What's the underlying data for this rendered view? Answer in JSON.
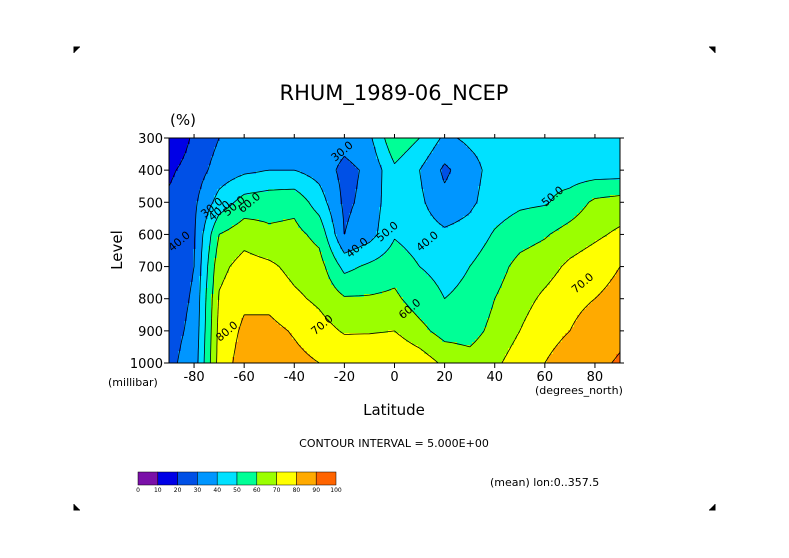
{
  "chart_data": {
    "type": "heatmap",
    "title": "RHUM_1989-06_NCEP",
    "units": "(%)",
    "xlabel": "Latitude",
    "ylabel": "Level",
    "x_units": "(degrees_north)",
    "y_units": "(millibar)",
    "xlim": [
      -90,
      90
    ],
    "ylim": [
      1000,
      300
    ],
    "x_ticks": [
      -80,
      -60,
      -40,
      -20,
      0,
      20,
      40,
      60,
      80
    ],
    "x_tick_labels": [
      "-80",
      "-60",
      "-40",
      "-20",
      "0",
      "20",
      "40",
      "60",
      "80"
    ],
    "y_ticks": [
      300,
      400,
      500,
      600,
      700,
      800,
      900,
      1000
    ],
    "y_tick_labels": [
      "300",
      "400",
      "500",
      "600",
      "700",
      "800",
      "900",
      "1000"
    ],
    "contour_interval_text": "CONTOUR INTERVAL = 5.000E+00",
    "footnote": "(mean) lon:0..357.5",
    "grid_x": [
      -90,
      -80,
      -70,
      -60,
      -50,
      -40,
      -30,
      -20,
      -10,
      0,
      10,
      20,
      30,
      40,
      50,
      60,
      70,
      80,
      90
    ],
    "grid_y": [
      300,
      400,
      500,
      600,
      700,
      800,
      900,
      1000
    ],
    "values": [
      [
        10,
        22,
        30,
        32,
        33,
        34,
        36,
        34,
        38,
        58,
        50,
        38,
        42,
        44,
        46,
        48,
        48,
        48,
        48
      ],
      [
        18,
        25,
        34,
        38,
        40,
        40,
        36,
        27,
        32,
        48,
        40,
        28,
        36,
        44,
        48,
        47,
        45,
        45,
        45
      ],
      [
        22,
        28,
        44,
        54,
        56,
        57,
        45,
        28,
        33,
        48,
        42,
        33,
        38,
        45,
        48,
        49,
        54,
        62,
        64
      ],
      [
        24,
        29,
        60,
        66,
        62,
        63,
        57,
        30,
        36,
        49,
        45,
        42,
        44,
        51,
        56,
        59,
        64,
        68,
        72
      ],
      [
        25,
        30,
        67,
        74,
        72,
        67,
        64,
        47,
        52,
        56,
        50,
        47,
        50,
        56,
        63,
        66,
        72,
        76,
        80
      ],
      [
        26,
        31,
        71,
        78,
        77,
        72,
        68,
        61,
        61,
        62,
        55,
        50,
        52,
        60,
        66,
        72,
        77,
        80,
        83
      ],
      [
        27,
        32,
        73,
        82,
        83,
        79,
        74,
        69,
        69,
        70,
        63,
        56,
        56,
        63,
        70,
        77,
        80,
        85,
        88
      ],
      [
        28,
        34,
        74,
        85,
        86,
        83,
        80,
        78,
        80,
        80,
        76,
        68,
        64,
        68,
        75,
        80,
        84,
        88,
        91
      ]
    ],
    "contour_labels": [
      {
        "text": "30.0",
        "x": -20,
        "y": 350
      },
      {
        "text": "30.0",
        "x": -72,
        "y": 525
      },
      {
        "text": "40.0",
        "x": -69,
        "y": 535
      },
      {
        "text": "50.0",
        "x": -63,
        "y": 520
      },
      {
        "text": "60.0",
        "x": -57,
        "y": 510
      },
      {
        "text": "40.0",
        "x": -85,
        "y": 630
      },
      {
        "text": "40.0",
        "x": -14,
        "y": 650
      },
      {
        "text": "50.0",
        "x": -2,
        "y": 600
      },
      {
        "text": "40.0",
        "x": 14,
        "y": 630
      },
      {
        "text": "50.0",
        "x": 64,
        "y": 490
      },
      {
        "text": "60.0",
        "x": 7,
        "y": 840
      },
      {
        "text": "70.0",
        "x": -28,
        "y": 890
      },
      {
        "text": "70.0",
        "x": 76,
        "y": 760
      },
      {
        "text": "80.0",
        "x": -66,
        "y": 910
      }
    ],
    "colorbar": {
      "levels": [
        0,
        10,
        20,
        30,
        40,
        50,
        60,
        70,
        80,
        90,
        100
      ],
      "tick_labels": [
        "0",
        "10",
        "20",
        "30",
        "40",
        "50",
        "60",
        "70",
        "80",
        "90",
        "100"
      ],
      "colors": [
        "#7a10a8",
        "#0000e6",
        "#0050e6",
        "#0096ff",
        "#00e1ff",
        "#00ff96",
        "#9bff00",
        "#ffff00",
        "#ffaa00",
        "#ff6400",
        "#ff0000"
      ]
    },
    "grid": false,
    "legend": "bottom-left colorbar"
  }
}
